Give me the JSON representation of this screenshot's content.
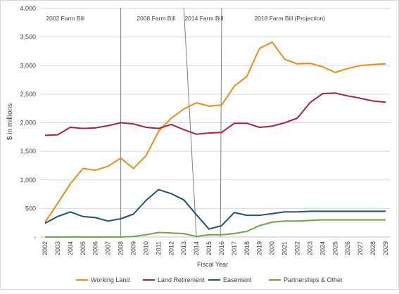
{
  "chart_data": {
    "type": "line",
    "title": "",
    "xlabel": "Fiscal Year",
    "ylabel": "$ in millions",
    "ylim": [
      0,
      4000
    ],
    "y_ticks": [
      0,
      500,
      1000,
      1500,
      2000,
      2500,
      3000,
      3500,
      4000
    ],
    "y_tick_labels": [
      "-",
      "500",
      "1,000",
      "1,500",
      "2,000",
      "2,500",
      "3,000",
      "3,500",
      "4,000"
    ],
    "grid": true,
    "legend_position": "bottom",
    "categories": [
      "2002",
      "2003",
      "2004",
      "2005",
      "2006",
      "2007",
      "2008",
      "2009",
      "2010",
      "2011",
      "2012",
      "2013",
      "2014",
      "2015",
      "2016",
      "2017",
      "2018",
      "2019",
      "2020",
      "2021",
      "2022",
      "2023",
      "2024",
      "2025",
      "2026",
      "2027",
      "2028",
      "2029"
    ],
    "periods": [
      {
        "label": "2002 Farm Bill"
      },
      {
        "label": "2008 Farm Bill"
      },
      {
        "label": "2014 Farm Bill"
      },
      {
        "label": "2018 Farm Bill (Projection)"
      }
    ],
    "series": [
      {
        "name": "Working Land",
        "color": "#ED8B1E",
        "values": [
          260,
          590,
          930,
          1200,
          1170,
          1240,
          1380,
          1200,
          1420,
          1850,
          2080,
          2240,
          2350,
          2290,
          2310,
          2640,
          2810,
          3300,
          3410,
          3110,
          3030,
          3040,
          2980,
          2880,
          2950,
          3000,
          3020,
          3030
        ]
      },
      {
        "name": "Land Retirement",
        "color": "#A5263A",
        "values": [
          1780,
          1790,
          1920,
          1900,
          1910,
          1950,
          2000,
          1980,
          1920,
          1900,
          1970,
          1880,
          1800,
          1820,
          1830,
          1990,
          1990,
          1920,
          1940,
          2000,
          2080,
          2350,
          2510,
          2520,
          2470,
          2430,
          2380,
          2360
        ]
      },
      {
        "name": "Easement",
        "color": "#1F5373",
        "values": [
          240,
          360,
          440,
          360,
          340,
          280,
          320,
          400,
          640,
          830,
          760,
          650,
          390,
          140,
          200,
          430,
          380,
          380,
          410,
          440,
          440,
          450,
          450,
          450,
          450,
          450,
          450,
          450
        ]
      },
      {
        "name": "Partnerships & Other",
        "color": "#72A34A",
        "values": [
          0,
          0,
          0,
          0,
          0,
          0,
          0,
          10,
          40,
          80,
          70,
          60,
          10,
          40,
          40,
          60,
          100,
          200,
          260,
          280,
          280,
          290,
          300,
          300,
          300,
          300,
          300,
          300
        ]
      }
    ]
  }
}
